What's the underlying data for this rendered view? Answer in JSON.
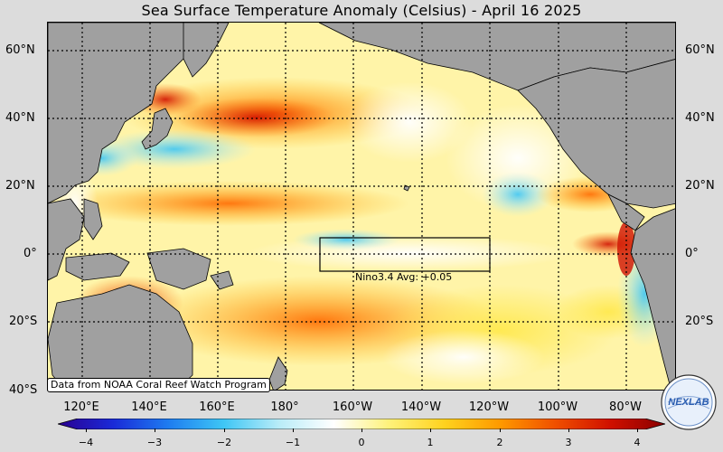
{
  "title": "Sea Surface Temperature Anomaly (Celsius) - April 16 2025",
  "lat_labels": [
    "60°N",
    "40°N",
    "20°N",
    "0°",
    "20°S",
    "40°S"
  ],
  "lon_labels": [
    "120°E",
    "140°E",
    "160°E",
    "180°",
    "160°W",
    "140°W",
    "120°W",
    "100°W",
    "80°W"
  ],
  "nino_box_label": "Nino3.4 Avg: +0.05",
  "source_note": "Data from NOAA Coral Reef Watch Program",
  "colorbar": {
    "ticks": [
      "−4",
      "−3",
      "−2",
      "−1",
      "0",
      "1",
      "2",
      "3",
      "4"
    ],
    "min": -4,
    "max": 4,
    "colors": [
      "#2a0090",
      "#1a2ad8",
      "#1e7cf0",
      "#3ec6f5",
      "#b8ecf8",
      "#ffffff",
      "#fff27a",
      "#ffd21e",
      "#ff9a00",
      "#f05000",
      "#d01000",
      "#8a0000"
    ]
  },
  "logo_text": "NEXLAB",
  "map": {
    "lon_range": [
      "110°E",
      "70°W"
    ],
    "lat_range": [
      "40°S",
      "68°N"
    ],
    "grid": "dotted 20° lat/lon",
    "nino34_region": {
      "lat": [
        -5,
        5
      ],
      "lon": [
        "170°W",
        "120°W"
      ]
    },
    "land_color": "#a0a0a0"
  }
}
